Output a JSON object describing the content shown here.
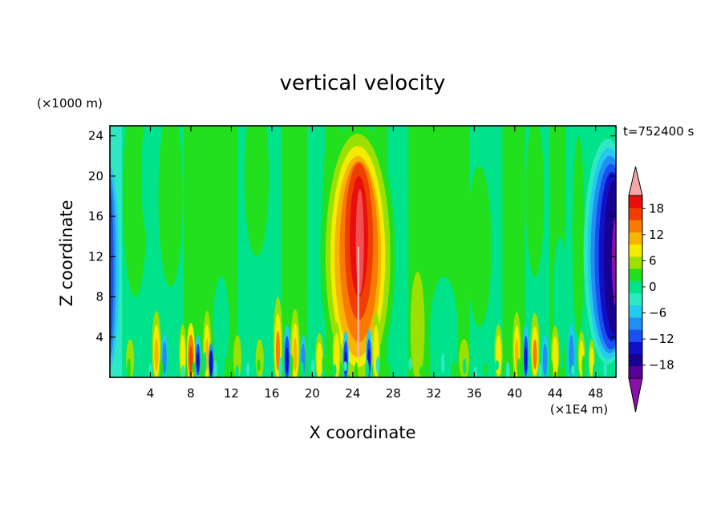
{
  "chart_data": {
    "type": "heatmap",
    "title": "vertical velocity",
    "xlabel": "X coordinate",
    "ylabel": "Z coordinate",
    "x_unit": "(×1E4 m)",
    "y_unit": "(×1000 m)",
    "time_label": "t=752400 s",
    "xlim": [
      0,
      50
    ],
    "ylim": [
      0,
      25
    ],
    "x_ticks": [
      "4",
      "8",
      "12",
      "16",
      "20",
      "24",
      "28",
      "32",
      "36",
      "40",
      "44",
      "48"
    ],
    "x_tick_values": [
      4,
      8,
      12,
      16,
      20,
      24,
      28,
      32,
      36,
      40,
      44,
      48
    ],
    "y_ticks": [
      "4",
      "8",
      "12",
      "16",
      "20",
      "24"
    ],
    "y_tick_values": [
      4,
      8,
      12,
      16,
      20,
      24
    ],
    "colorbar": {
      "levels": [
        -21,
        -18,
        -15,
        -12,
        -9,
        -6,
        -3,
        0,
        3,
        6,
        9,
        12,
        15,
        18,
        21
      ],
      "tick_labels": [
        "18",
        "12",
        "6",
        "0",
        "−6",
        "−12",
        "−18"
      ],
      "tick_values": [
        18,
        12,
        6,
        0,
        -6,
        -12,
        -18
      ],
      "colors": [
        "#5a009a",
        "#1a0090",
        "#1010c8",
        "#1a4ff0",
        "#1f8ff2",
        "#23c9ee",
        "#2de8c2",
        "#00e38a",
        "#22e01e",
        "#9be000",
        "#f4ec00",
        "#f7b400",
        "#fa7a00",
        "#ef3e00",
        "#e80e0e"
      ],
      "under_color": "#8a11a8",
      "over_color": "#f5a6a6",
      "background_color": "#00e38a"
    },
    "features": [
      {
        "name": "updraft core",
        "x": 24.5,
        "z": 14,
        "peak": 18,
        "halfwidth_x": 2.6,
        "halfwidth_z": 9
      },
      {
        "name": "downdraft region",
        "x": 49.0,
        "z": 12,
        "peak": -19,
        "halfwidth_x": 1.3,
        "halfwidth_z": 8
      },
      {
        "name": "left edge downdraft",
        "x": 0.3,
        "z": 10,
        "peak": -10,
        "halfwidth_x": 0.6,
        "halfwidth_z": 9
      }
    ]
  }
}
